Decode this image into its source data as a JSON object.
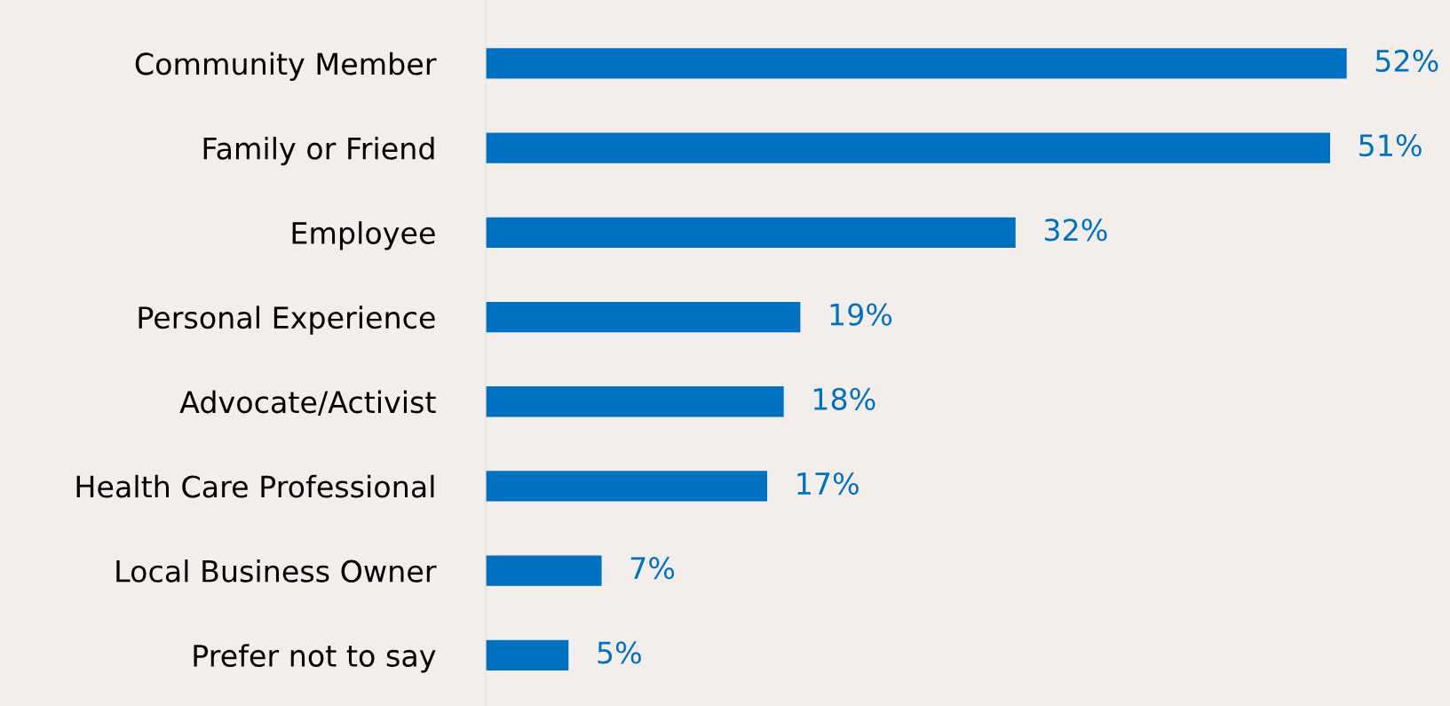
{
  "chart_data": {
    "type": "bar",
    "orientation": "horizontal",
    "categories": [
      "Community Member",
      "Family or Friend",
      "Employee",
      "Personal Experience",
      "Advocate/Activist",
      "Health Care Professional",
      "Local Business Owner",
      "Prefer not to say"
    ],
    "values": [
      52,
      51,
      32,
      19,
      18,
      17,
      7,
      5
    ],
    "value_labels": [
      "52%",
      "51%",
      "32%",
      "19%",
      "18%",
      "17%",
      "7%",
      "5%"
    ],
    "color": "#0070c0",
    "grid": false,
    "legend": false,
    "tick_labels": "y"
  }
}
